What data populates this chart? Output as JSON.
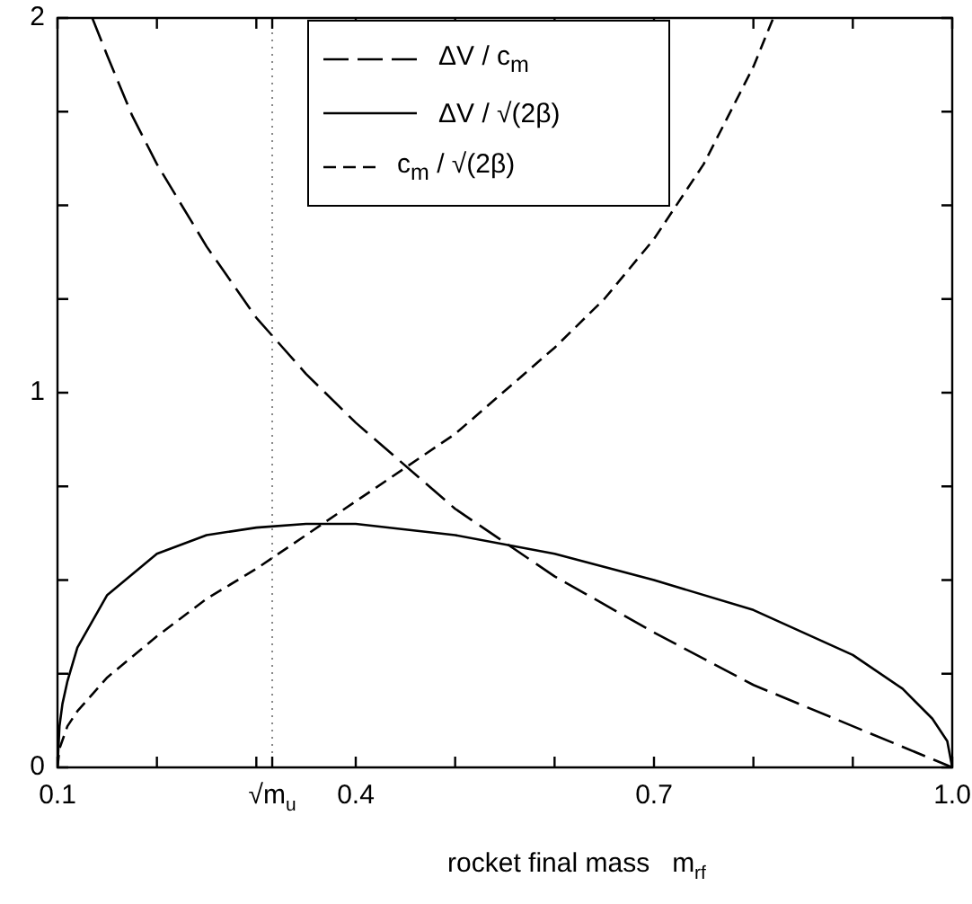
{
  "chart_data": {
    "type": "line",
    "xlabel": "rocket final mass   m$_{rf}$",
    "xlim": [
      0.1,
      1.0
    ],
    "ylim": [
      0,
      2
    ],
    "xticks": [
      0.1,
      {
        "value": 0.2,
        "label": null
      },
      {
        "value": 0.3,
        "label": null
      },
      {
        "value": 0.316,
        "label": "√m$_{u}$"
      },
      0.4,
      {
        "value": 0.5,
        "label": null
      },
      {
        "value": 0.6,
        "label": null
      },
      0.7,
      {
        "value": 0.8,
        "label": null
      },
      {
        "value": 0.9,
        "label": null
      },
      {
        "value": 1.0,
        "label": "1.0"
      }
    ],
    "yticks": [
      0,
      {
        "value": 0.25,
        "label": null
      },
      {
        "value": 0.5,
        "label": null
      },
      {
        "value": 0.75,
        "label": null
      },
      1,
      {
        "value": 1.25,
        "label": null
      },
      {
        "value": 1.5,
        "label": null
      },
      {
        "value": 1.75,
        "label": null
      },
      2
    ],
    "grid": false,
    "legend": "top",
    "marker": "none",
    "ref_lines": [
      {
        "axis": "x",
        "value": 0.316,
        "color": "#888888",
        "line_style": "dotted"
      }
    ],
    "series": [
      {
        "name": "ΔV / c$_{m}$",
        "color": "#000000",
        "line_style": "dashed",
        "x": [
          0.135,
          0.15,
          0.175,
          0.2,
          0.25,
          0.3,
          0.35,
          0.4,
          0.5,
          0.6,
          0.7,
          0.8,
          0.9,
          1.0
        ],
        "values": [
          2.0,
          1.9,
          1.74,
          1.61,
          1.39,
          1.2,
          1.05,
          0.92,
          0.69,
          0.51,
          0.36,
          0.22,
          0.11,
          0
        ]
      },
      {
        "name": "ΔV / √(2β)",
        "color": "#000000",
        "line_style": "solid",
        "x": [
          0.1,
          0.102,
          0.105,
          0.11,
          0.12,
          0.15,
          0.2,
          0.25,
          0.3,
          0.35,
          0.4,
          0.5,
          0.6,
          0.7,
          0.8,
          0.9,
          0.95,
          0.98,
          0.995,
          1.0
        ],
        "values": [
          0,
          0.11,
          0.17,
          0.23,
          0.32,
          0.46,
          0.57,
          0.62,
          0.64,
          0.65,
          0.65,
          0.62,
          0.57,
          0.5,
          0.42,
          0.3,
          0.21,
          0.13,
          0.07,
          0
        ]
      },
      {
        "name": "c$_{m}$ / √(2β)",
        "color": "#000000",
        "line_style": "dashed",
        "x": [
          0.1,
          0.102,
          0.11,
          0.12,
          0.15,
          0.2,
          0.25,
          0.3,
          0.35,
          0.4,
          0.5,
          0.6,
          0.65,
          0.7,
          0.75,
          0.8,
          0.82
        ],
        "values": [
          0,
          0.05,
          0.11,
          0.15,
          0.24,
          0.35,
          0.45,
          0.53,
          0.62,
          0.71,
          0.89,
          1.12,
          1.25,
          1.41,
          1.61,
          1.87,
          2.0
        ]
      }
    ]
  }
}
